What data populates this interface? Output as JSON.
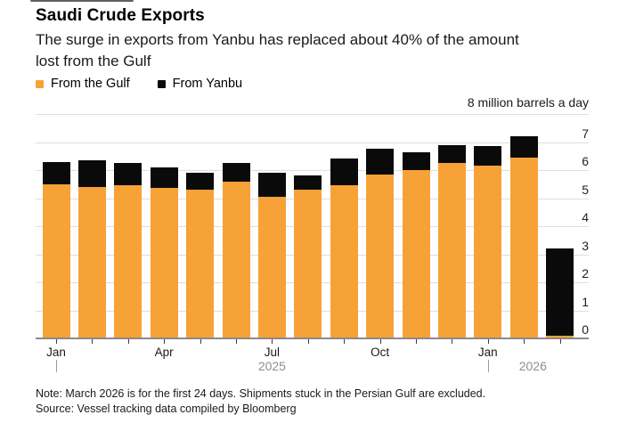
{
  "header": {
    "title": "Saudi Crude Exports",
    "subtitle_line1": "The surge in exports from Yanbu has replaced about 40% of the amount",
    "subtitle_line2": "lost from the Gulf"
  },
  "legend": {
    "items": [
      {
        "label": "From the Gulf",
        "color": "#F7A237"
      },
      {
        "label": "From Yanbu",
        "color": "#0a0a0a"
      }
    ]
  },
  "chart_data": {
    "type": "bar",
    "stacked": true,
    "title": "Saudi Crude Exports",
    "unit_label": "8 million barrels a day",
    "ylabel": "million barrels a day",
    "ylim": [
      0,
      8
    ],
    "yticks": [
      0,
      1,
      2,
      3,
      4,
      5,
      6,
      7
    ],
    "grid": true,
    "legend_position": "top-left",
    "categories": [
      "Jan 2025",
      "Feb 2025",
      "Mar 2025",
      "Apr 2025",
      "May 2025",
      "Jun 2025",
      "Jul 2025",
      "Aug 2025",
      "Sep 2025",
      "Oct 2025",
      "Nov 2025",
      "Dec 2025",
      "Jan 2026",
      "Feb 2026",
      "Mar 2026"
    ],
    "series": [
      {
        "name": "From the Gulf",
        "color": "#F7A237",
        "values": [
          5.5,
          5.4,
          5.45,
          5.35,
          5.3,
          5.6,
          5.05,
          5.3,
          5.45,
          5.85,
          6.0,
          6.25,
          6.15,
          6.45,
          0.1
        ]
      },
      {
        "name": "From Yanbu",
        "color": "#0a0a0a",
        "values": [
          0.8,
          0.95,
          0.8,
          0.75,
          0.6,
          0.65,
          0.85,
          0.5,
          0.95,
          0.9,
          0.65,
          0.65,
          0.7,
          0.75,
          3.1
        ]
      }
    ],
    "x_axis_month_labels": [
      {
        "index": 0,
        "label": "Jan"
      },
      {
        "index": 3,
        "label": "Apr"
      },
      {
        "index": 6,
        "label": "Jul"
      },
      {
        "index": 9,
        "label": "Oct"
      },
      {
        "index": 12,
        "label": "Jan"
      }
    ],
    "year_markers": [
      {
        "index": 0,
        "label": "2025"
      },
      {
        "index": 12,
        "label": "2026"
      }
    ]
  },
  "footer": {
    "note": "Note: March 2026 is for the first 24 days. Shipments stuck in the Persian Gulf are excluded.",
    "source": "Source: Vessel tracking data compiled by Bloomberg"
  }
}
